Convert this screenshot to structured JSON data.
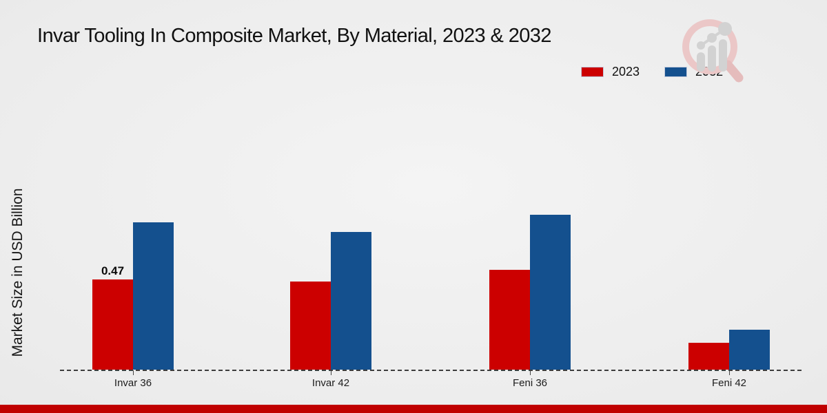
{
  "title": "Invar Tooling In Composite Market, By Material, 2023 & 2032",
  "ylabel": "Market Size in USD Billion",
  "legend": [
    {
      "label": "2023",
      "color": "#cc0000"
    },
    {
      "label": "2032",
      "color": "#14508e"
    }
  ],
  "footer_band_color": "#c00000",
  "watermark_icon": "magnifier-bar-chart-logo",
  "chart_data": {
    "type": "bar",
    "title": "Invar Tooling In Composite Market, By Material, 2023 & 2032",
    "categories": [
      "Invar 36",
      "Invar 42",
      "Feni 36",
      "Feni 42"
    ],
    "series": [
      {
        "name": "2023",
        "color": "#cc0000",
        "values": [
          0.47,
          0.46,
          0.52,
          0.14
        ]
      },
      {
        "name": "2032",
        "color": "#14508e",
        "values": [
          0.77,
          0.72,
          0.81,
          0.21
        ]
      }
    ],
    "annotations": [
      {
        "series": "2023",
        "category": "Invar 36",
        "text": "0.47"
      }
    ],
    "xlabel": "",
    "ylabel": "Market Size in USD Billion",
    "ylim": [
      0,
      0.9
    ],
    "grid": false,
    "legend_position": "top-right",
    "x_axis_style": "dashed-baseline"
  }
}
